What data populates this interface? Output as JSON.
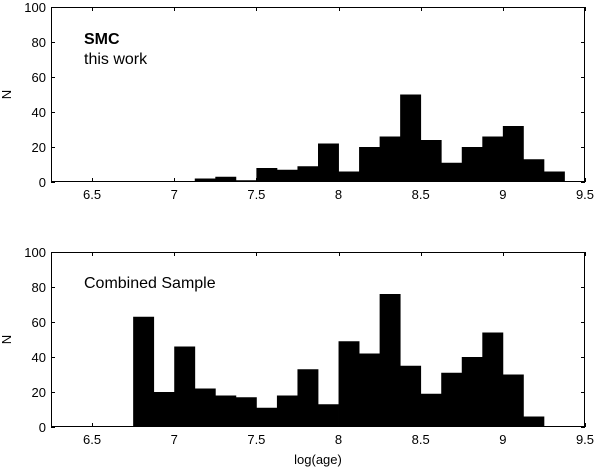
{
  "chart_data": [
    {
      "type": "bar",
      "annotations": [
        "SMC",
        "this work"
      ],
      "xlabel": "",
      "ylabel": "N",
      "xlim": [
        6.25,
        9.5
      ],
      "ylim": [
        0,
        100
      ],
      "xticks": [
        "6.5",
        "7",
        "7.5",
        "8",
        "8.5",
        "9",
        "9.5"
      ],
      "yticks": [
        "0",
        "20",
        "40",
        "60",
        "80",
        "100"
      ],
      "bin_width": 0.125,
      "bin_starts": [
        6.25,
        6.375,
        6.5,
        6.625,
        6.75,
        6.875,
        7.0,
        7.125,
        7.25,
        7.375,
        7.5,
        7.625,
        7.75,
        7.875,
        8.0,
        8.125,
        8.25,
        8.375,
        8.5,
        8.625,
        8.75,
        8.875,
        9.0,
        9.125,
        9.25,
        9.375
      ],
      "values": [
        0,
        0,
        0,
        0,
        0,
        0,
        0,
        2,
        3,
        1,
        8,
        7,
        9,
        22,
        6,
        20,
        26,
        50,
        24,
        11,
        20,
        26,
        32,
        13,
        6,
        0
      ]
    },
    {
      "type": "bar",
      "annotations": [
        "Combined Sample"
      ],
      "xlabel": "log(age)",
      "ylabel": "N",
      "xlim": [
        6.25,
        9.5
      ],
      "ylim": [
        0,
        100
      ],
      "xticks": [
        "6.5",
        "7",
        "7.5",
        "8",
        "8.5",
        "9",
        "9.5"
      ],
      "yticks": [
        "0",
        "20",
        "40",
        "60",
        "80",
        "100"
      ],
      "bin_width": 0.125,
      "bin_starts": [
        6.25,
        6.375,
        6.5,
        6.625,
        6.75,
        6.875,
        7.0,
        7.125,
        7.25,
        7.375,
        7.5,
        7.625,
        7.75,
        7.875,
        8.0,
        8.125,
        8.25,
        8.375,
        8.5,
        8.625,
        8.75,
        8.875,
        9.0,
        9.125,
        9.25,
        9.375
      ],
      "values": [
        0,
        0,
        0,
        0,
        63,
        20,
        46,
        22,
        18,
        17,
        11,
        18,
        33,
        13,
        49,
        42,
        76,
        35,
        19,
        31,
        40,
        54,
        30,
        6,
        0,
        0
      ]
    }
  ],
  "style": {
    "bar_color": "#000000",
    "background": "#ffffff"
  }
}
